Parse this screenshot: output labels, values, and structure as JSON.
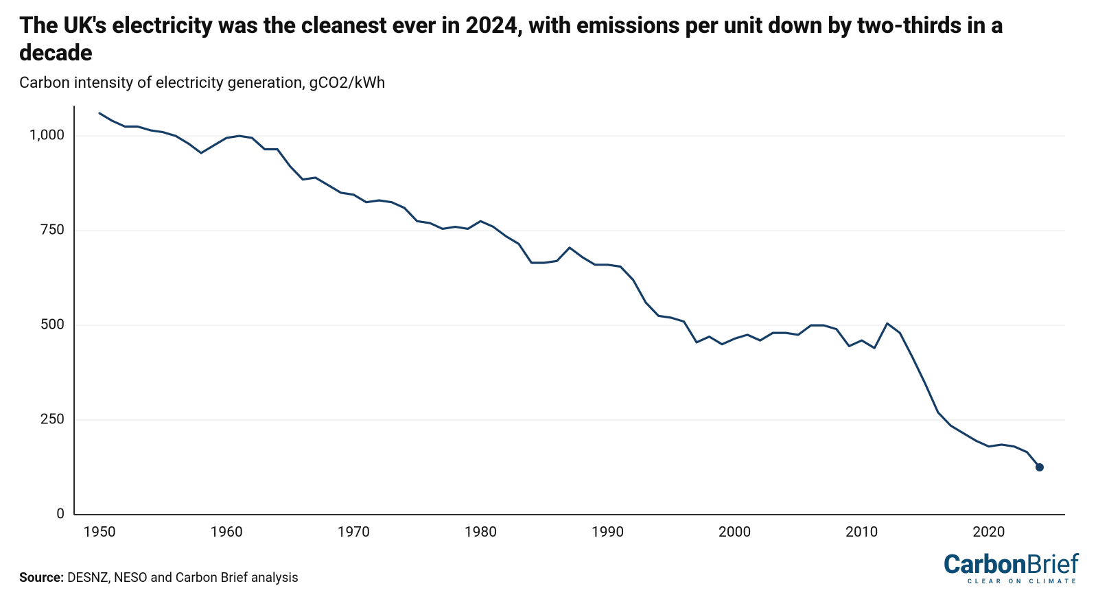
{
  "header": {
    "title": "The UK's electricity was the cleanest ever in 2024, with emissions per unit down by two-thirds in a decade",
    "subtitle": "Carbon intensity of electricity generation, gCO2/kWh"
  },
  "chart": {
    "type": "line",
    "background_color": "#ffffff",
    "grid_color": "#e6e6e6",
    "axis_color": "#101010",
    "label_color": "#101010",
    "label_fontsize": 21,
    "line_color": "#153d66",
    "line_width": 3.2,
    "marker_end": {
      "shape": "circle",
      "radius": 6,
      "fill": "#153d66"
    },
    "xlim": [
      1948,
      2026
    ],
    "ylim": [
      0,
      1080
    ],
    "x_ticks": [
      1950,
      1960,
      1970,
      1980,
      1990,
      2000,
      2010,
      2020
    ],
    "y_ticks": [
      0,
      250,
      500,
      750,
      1000
    ],
    "y_tick_labels": [
      "0",
      "250",
      "500",
      "750",
      "1,000"
    ],
    "series": {
      "years": [
        1950,
        1951,
        1952,
        1953,
        1954,
        1955,
        1956,
        1957,
        1958,
        1959,
        1960,
        1961,
        1962,
        1963,
        1964,
        1965,
        1966,
        1967,
        1968,
        1969,
        1970,
        1971,
        1972,
        1973,
        1974,
        1975,
        1976,
        1977,
        1978,
        1979,
        1980,
        1981,
        1982,
        1983,
        1984,
        1985,
        1986,
        1987,
        1988,
        1989,
        1990,
        1991,
        1992,
        1993,
        1994,
        1995,
        1996,
        1997,
        1998,
        1999,
        2000,
        2001,
        2002,
        2003,
        2004,
        2005,
        2006,
        2007,
        2008,
        2009,
        2010,
        2011,
        2012,
        2013,
        2014,
        2015,
        2016,
        2017,
        2018,
        2019,
        2020,
        2021,
        2022,
        2023,
        2024
      ],
      "values": [
        1060,
        1040,
        1025,
        1025,
        1015,
        1010,
        1000,
        980,
        955,
        975,
        995,
        1000,
        995,
        965,
        965,
        920,
        885,
        890,
        870,
        850,
        845,
        825,
        830,
        825,
        810,
        775,
        770,
        755,
        760,
        755,
        775,
        760,
        735,
        715,
        665,
        665,
        670,
        705,
        680,
        660,
        660,
        655,
        620,
        560,
        525,
        520,
        510,
        455,
        470,
        450,
        465,
        475,
        460,
        480,
        480,
        475,
        500,
        500,
        490,
        445,
        460,
        440,
        505,
        480,
        415,
        345,
        270,
        235,
        215,
        195,
        180,
        185,
        180,
        165,
        125
      ]
    }
  },
  "footer": {
    "source_label": "Source:",
    "source_text": "DESNZ, NESO and Carbon Brief analysis",
    "logo": {
      "word1": "Carbon",
      "word2": "Brief",
      "tagline": "CLEAR ON CLIMATE",
      "color": "#0b4c75"
    }
  }
}
